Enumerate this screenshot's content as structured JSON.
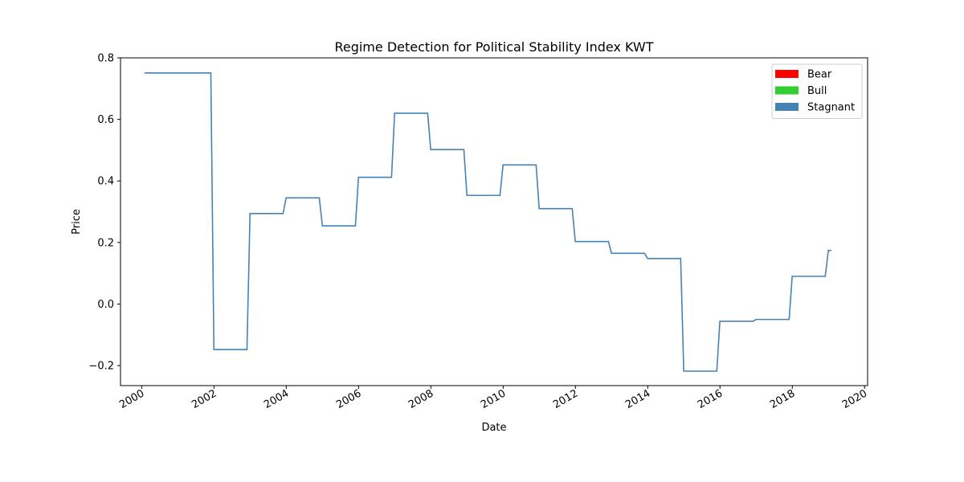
{
  "chart_data": {
    "type": "line",
    "title": "Regime Detection for Political Stability Index KWT",
    "xlabel": "Date",
    "ylabel": "Price",
    "xlim": [
      "1999-06-01",
      "2020-02-01"
    ],
    "ylim": [
      -0.265,
      0.8
    ],
    "x_ticks": [
      "2000",
      "2002",
      "2004",
      "2006",
      "2008",
      "2010",
      "2012",
      "2014",
      "2016",
      "2018",
      "2020"
    ],
    "y_ticks": [
      "−0.2",
      "0.0",
      "0.2",
      "0.4",
      "0.6",
      "0.8"
    ],
    "grid": false,
    "legend_placement": "top-right",
    "legend": [
      {
        "label": "Bear",
        "color": "#ff0000"
      },
      {
        "label": "Bull",
        "color": "#32cd32"
      },
      {
        "label": "Stagnant",
        "color": "#4682b4"
      }
    ],
    "series": [
      {
        "color": "#4682b4",
        "points": [
          [
            "2000-01-31",
            0.751
          ],
          [
            "2001-11-30",
            0.751
          ],
          [
            "2001-12-31",
            -0.148
          ],
          [
            "2002-11-30",
            -0.148
          ],
          [
            "2002-12-31",
            0.294
          ],
          [
            "2003-11-30",
            0.294
          ],
          [
            "2003-12-31",
            0.345
          ],
          [
            "2004-11-30",
            0.345
          ],
          [
            "2004-12-31",
            0.254
          ],
          [
            "2005-11-30",
            0.254
          ],
          [
            "2005-12-31",
            0.412
          ],
          [
            "2006-11-30",
            0.412
          ],
          [
            "2006-12-31",
            0.62
          ],
          [
            "2007-11-30",
            0.62
          ],
          [
            "2007-12-31",
            0.502
          ],
          [
            "2008-11-30",
            0.502
          ],
          [
            "2008-12-31",
            0.353
          ],
          [
            "2009-11-30",
            0.353
          ],
          [
            "2009-12-31",
            0.452
          ],
          [
            "2010-11-30",
            0.452
          ],
          [
            "2010-12-31",
            0.31
          ],
          [
            "2011-11-30",
            0.31
          ],
          [
            "2011-12-31",
            0.203
          ],
          [
            "2012-11-30",
            0.203
          ],
          [
            "2012-12-31",
            0.165
          ],
          [
            "2013-11-30",
            0.165
          ],
          [
            "2013-12-31",
            0.148
          ],
          [
            "2014-11-30",
            0.148
          ],
          [
            "2014-12-31",
            -0.218
          ],
          [
            "2015-11-30",
            -0.218
          ],
          [
            "2015-12-31",
            -0.056
          ],
          [
            "2016-11-30",
            -0.056
          ],
          [
            "2016-12-31",
            -0.05
          ],
          [
            "2017-11-30",
            -0.05
          ],
          [
            "2017-12-31",
            0.09
          ],
          [
            "2018-11-30",
            0.09
          ],
          [
            "2018-12-31",
            0.174
          ],
          [
            "2019-01-31",
            0.174
          ]
        ]
      }
    ]
  }
}
